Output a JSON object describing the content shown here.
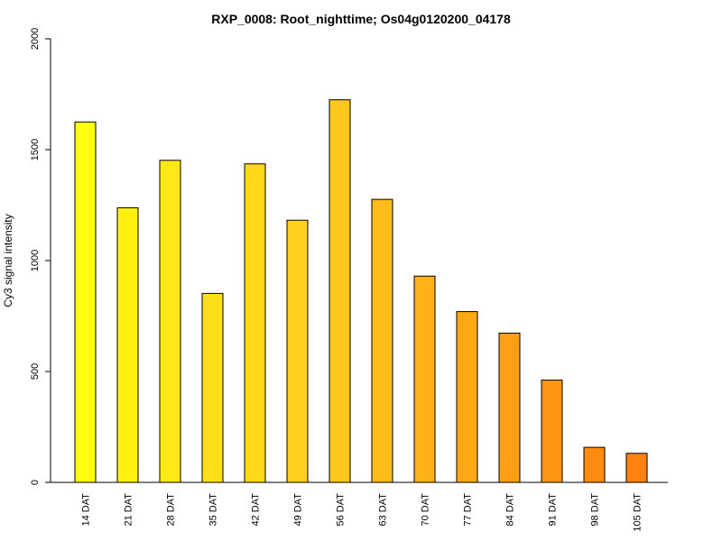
{
  "chart_data": {
    "type": "bar",
    "title": "RXP_0008: Root_nighttime; Os04g0120200_04178",
    "xlabel": "",
    "ylabel": "Cy3 signal intensity",
    "ylim": [
      0,
      2000
    ],
    "yticks": [
      0,
      500,
      1000,
      1500,
      2000
    ],
    "grid": false,
    "categories": [
      "14 DAT",
      "21 DAT",
      "28 DAT",
      "35 DAT",
      "42 DAT",
      "49 DAT",
      "56 DAT",
      "63 DAT",
      "70 DAT",
      "77 DAT",
      "84 DAT",
      "91 DAT",
      "98 DAT",
      "105 DAT"
    ],
    "values": [
      1625,
      1238,
      1452,
      852,
      1436,
      1182,
      1725,
      1276,
      930,
      770,
      673,
      461,
      158,
      131
    ],
    "colors": [
      "#ffff10",
      "#fff010",
      "#ffe814",
      "#ffe018",
      "#ffd81a",
      "#ffd01c",
      "#ffc61c",
      "#ffbc1a",
      "#ffb218",
      "#ffa816",
      "#ffa014",
      "#ff9612",
      "#ff8c10",
      "#ff820e"
    ]
  }
}
